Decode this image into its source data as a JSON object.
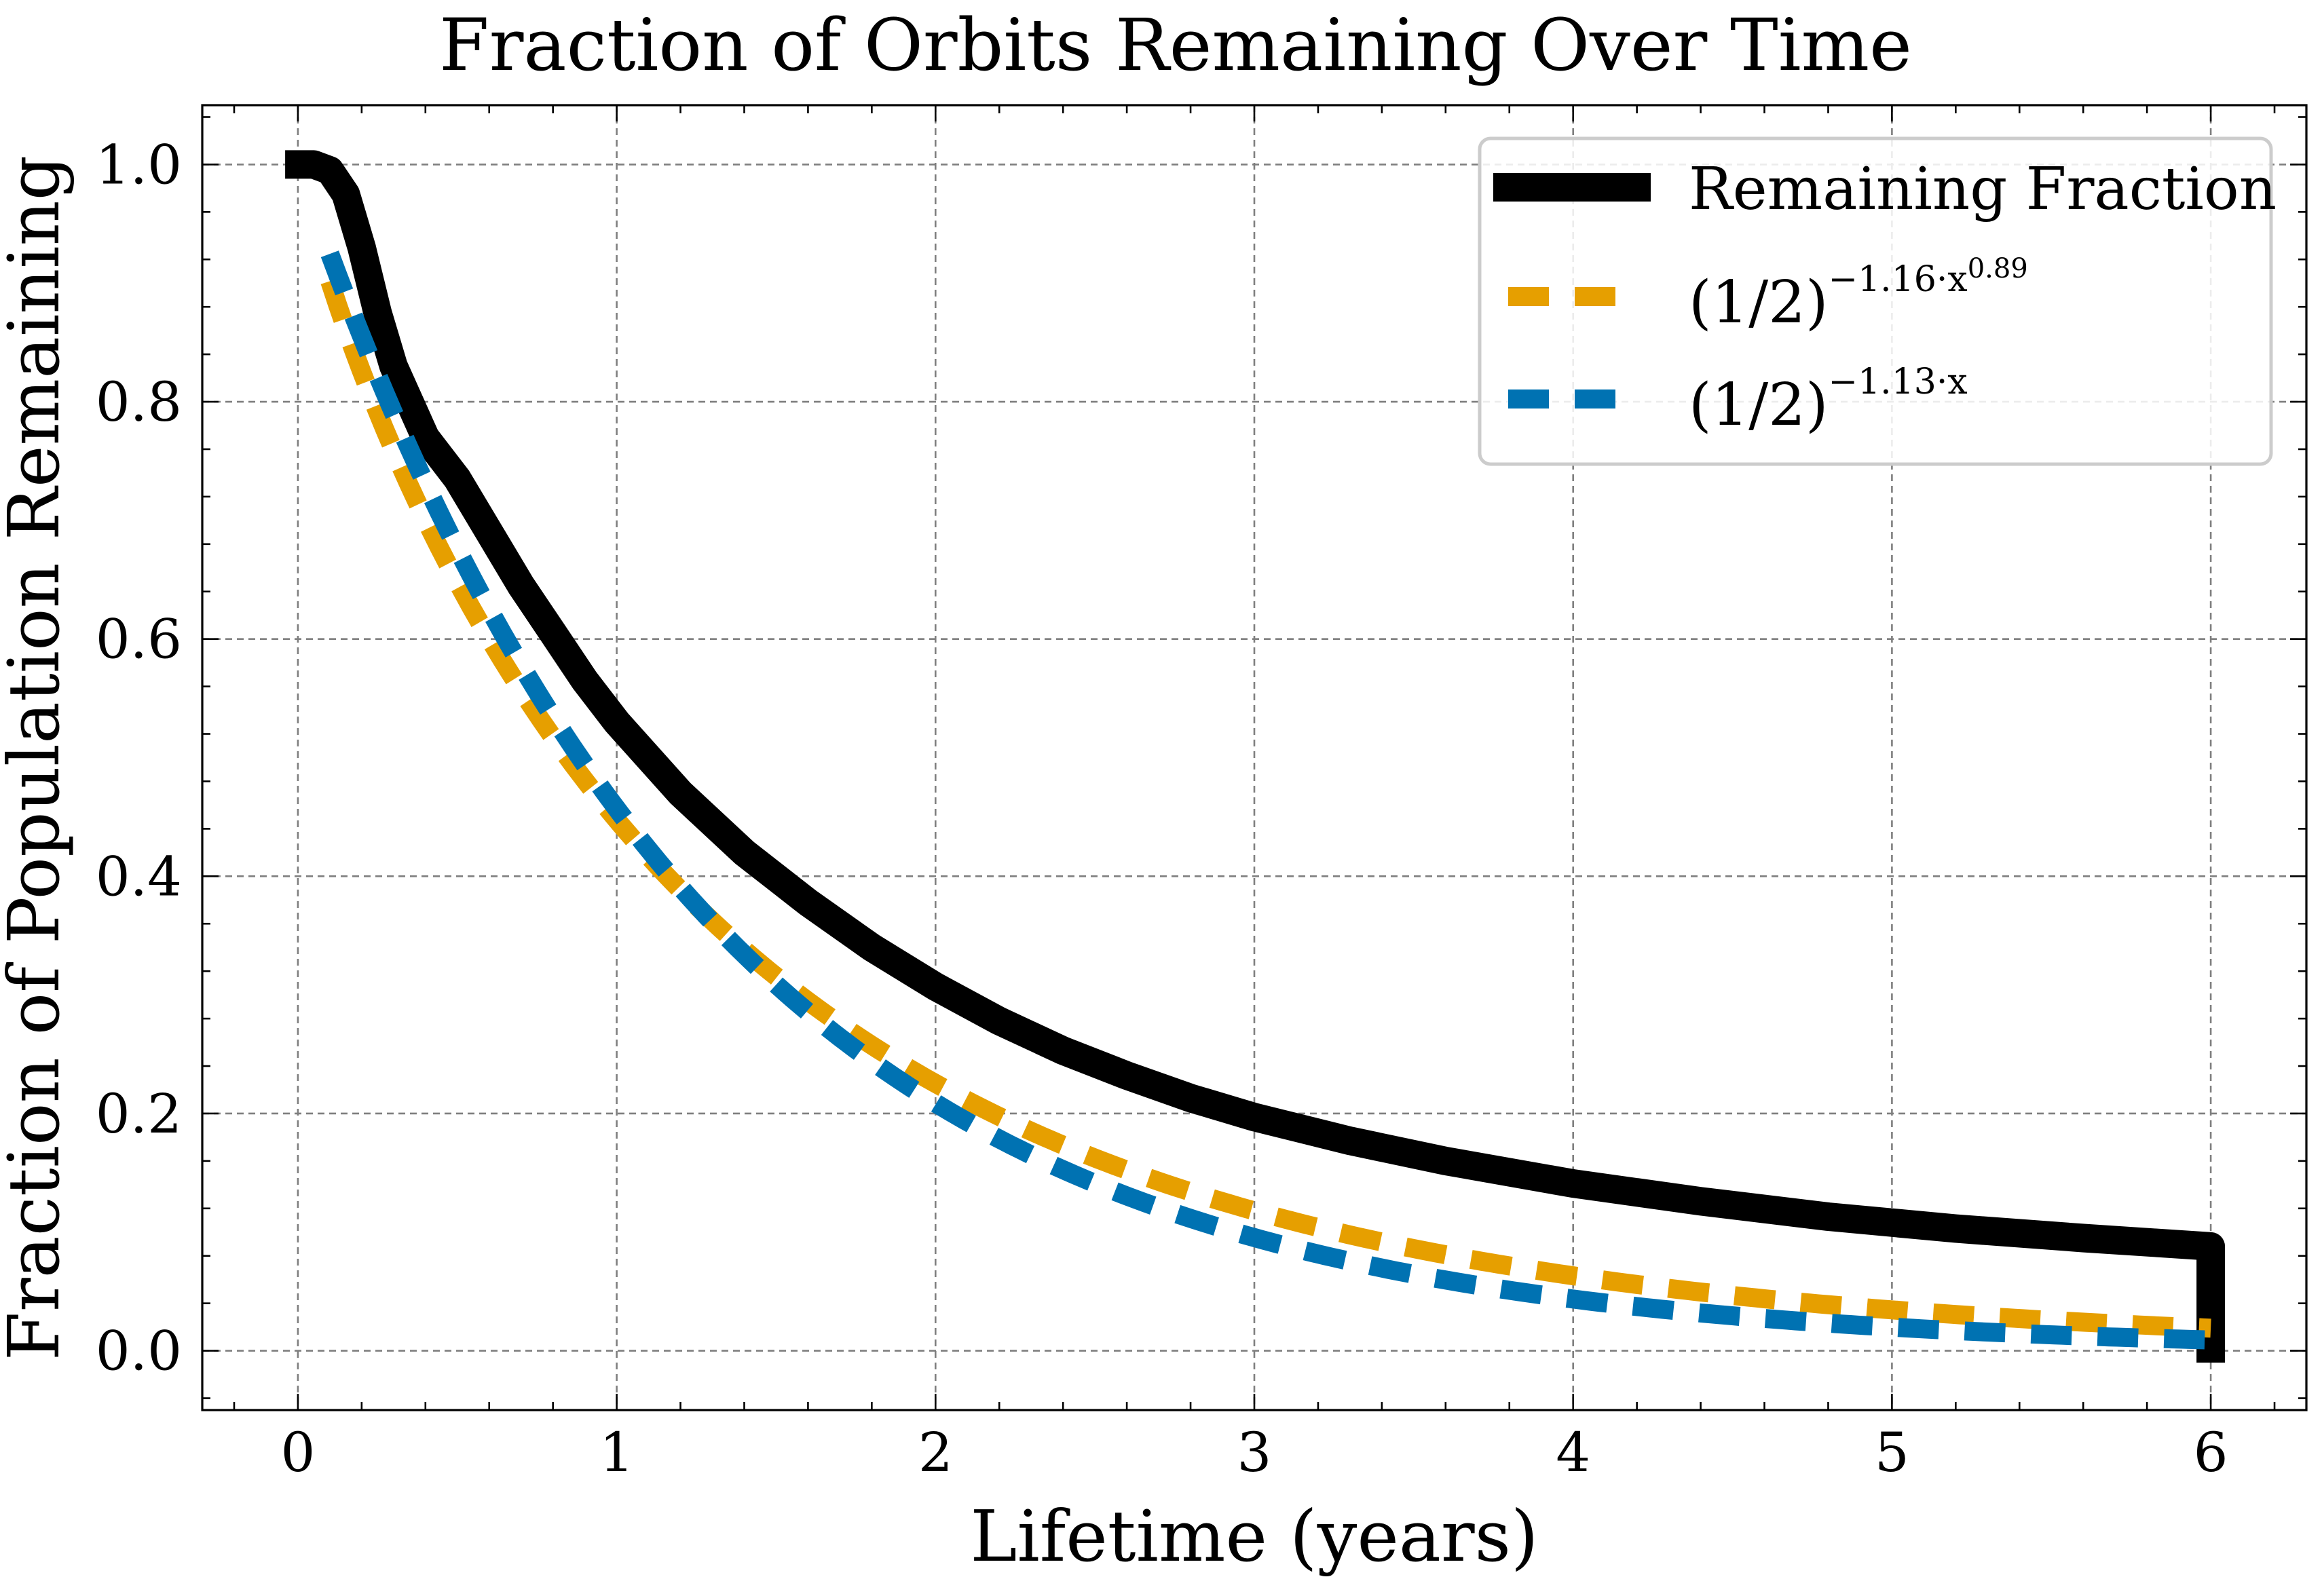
{
  "chart_data": {
    "type": "line",
    "title": "Fraction of Orbits Remaining Over Time",
    "xlabel": "Lifetime (years)",
    "ylabel": "Fraction of Population Remaining",
    "xlim": [
      -0.3,
      6.3
    ],
    "ylim": [
      -0.05,
      1.05
    ],
    "xticks": [
      0,
      1,
      2,
      3,
      4,
      5,
      6
    ],
    "xtick_labels": [
      "0",
      "1",
      "2",
      "3",
      "4",
      "5",
      "6"
    ],
    "yticks": [
      0.0,
      0.2,
      0.4,
      0.6,
      0.8,
      1.0
    ],
    "ytick_labels": [
      "0.0",
      "0.2",
      "0.4",
      "0.6",
      "0.8",
      "1.0"
    ],
    "grid": true,
    "legend_position": "top-right",
    "series": [
      {
        "name": "Remaining Fraction",
        "style": "solid",
        "color": "#000000",
        "x": [
          -0.04,
          0.0,
          0.05,
          0.1,
          0.15,
          0.2,
          0.25,
          0.3,
          0.4,
          0.5,
          0.6,
          0.7,
          0.8,
          0.9,
          1.0,
          1.2,
          1.4,
          1.6,
          1.8,
          2.0,
          2.2,
          2.4,
          2.6,
          2.8,
          3.0,
          3.3,
          3.6,
          4.0,
          4.4,
          4.8,
          5.2,
          5.6,
          6.0,
          6.0
        ],
        "y": [
          1.0,
          1.0,
          1.0,
          0.995,
          0.975,
          0.93,
          0.875,
          0.83,
          0.77,
          0.735,
          0.69,
          0.645,
          0.605,
          0.565,
          0.53,
          0.47,
          0.42,
          0.378,
          0.34,
          0.307,
          0.278,
          0.253,
          0.232,
          0.213,
          0.197,
          0.177,
          0.16,
          0.141,
          0.126,
          0.113,
          0.103,
          0.095,
          0.088,
          -0.01
        ]
      },
      {
        "name": "(1/2)^{-1.16·x^{0.89}}",
        "legend_base": "(1/2)",
        "legend_exponent": "−1.16·x",
        "legend_exponent_power": "0.89",
        "style": "dashed",
        "color": "#E69F00",
        "formula": {
          "kind": "stretched",
          "rate": 1.16,
          "power": 0.89
        },
        "x_range": [
          0.1,
          6.0
        ]
      },
      {
        "name": "(1/2)^{-1.13·x}",
        "legend_base": "(1/2)",
        "legend_exponent": "−1.13·x",
        "style": "dashed",
        "color": "#0072B2",
        "formula": {
          "kind": "exponential",
          "rate": 1.13,
          "power": 1.0
        },
        "x_range": [
          0.1,
          6.0
        ]
      }
    ]
  }
}
